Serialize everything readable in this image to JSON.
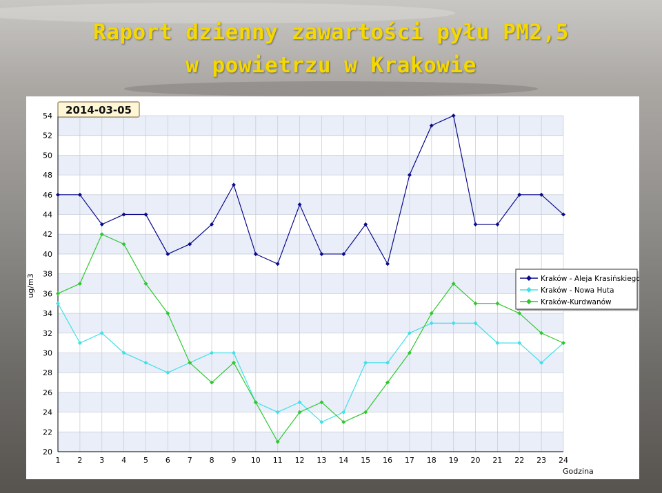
{
  "title": {
    "line1": "Raport dzienny zawartości pyłu PM2,5",
    "line2": "w powietrzu w Krakowie"
  },
  "colors": {
    "title": "#f5d800",
    "series": [
      "#0a0a8a",
      "#3fe0e8",
      "#2ec82e"
    ]
  },
  "chart_data": {
    "type": "line",
    "date_badge": "2014-03-05",
    "xlabel": "Godzina",
    "ylabel": "ug/m3",
    "x": [
      1,
      2,
      3,
      4,
      5,
      6,
      7,
      8,
      9,
      10,
      11,
      12,
      13,
      14,
      15,
      16,
      17,
      18,
      19,
      20,
      21,
      22,
      23,
      24
    ],
    "ylim": [
      20,
      54
    ],
    "yticks": [
      20,
      22,
      24,
      26,
      28,
      30,
      32,
      34,
      36,
      38,
      40,
      42,
      44,
      46,
      48,
      50,
      52,
      54
    ],
    "grid": true,
    "legend_position": "right",
    "series": [
      {
        "name": "Kraków - Aleja Krasińskiego",
        "marker": "diamond",
        "values": [
          46,
          46,
          43,
          44,
          44,
          40,
          41,
          43,
          47,
          40,
          39,
          45,
          40,
          40,
          43,
          39,
          48,
          53,
          54,
          43,
          43,
          46,
          46,
          44
        ]
      },
      {
        "name": "Kraków - Nowa Huta",
        "marker": "diamond",
        "values": [
          35,
          31,
          32,
          30,
          29,
          28,
          29,
          30,
          30,
          25,
          24,
          25,
          23,
          24,
          29,
          29,
          32,
          33,
          33,
          33,
          31,
          31,
          29,
          31
        ]
      },
      {
        "name": "Kraków-Kurdwanów",
        "marker": "diamond",
        "values": [
          36,
          37,
          42,
          41,
          37,
          34,
          29,
          27,
          29,
          25,
          21,
          24,
          25,
          23,
          24,
          27,
          30,
          34,
          37,
          35,
          35,
          34,
          32,
          31
        ]
      }
    ]
  }
}
